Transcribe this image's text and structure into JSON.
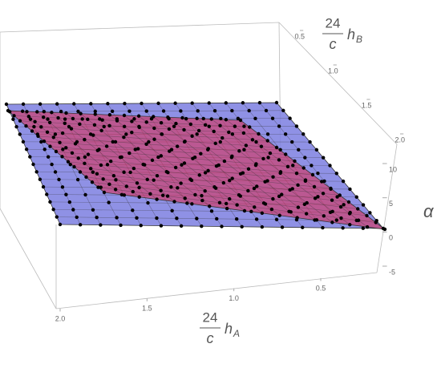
{
  "chart_data": {
    "type": "surface3d",
    "x_axis": {
      "label": {
        "numerator": "24",
        "denominator": "c",
        "symbol": "h",
        "subscript": "A"
      },
      "ticks": [
        {
          "value": 2,
          "label": "2.0"
        },
        1.5,
        {
          "value": 1,
          "label": "1.0"
        },
        0.5
      ]
    },
    "y_axis": {
      "label": {
        "numerator": "24",
        "denominator": "c",
        "symbol": "h",
        "subscript": "B"
      },
      "ticks": [
        0.5,
        {
          "value": 1,
          "label": "1.0"
        },
        1.5,
        {
          "value": 2,
          "label": "2.0"
        }
      ]
    },
    "z_axis": {
      "label": "α",
      "ticks": [
        10,
        5,
        0,
        -5
      ]
    }
  }
}
